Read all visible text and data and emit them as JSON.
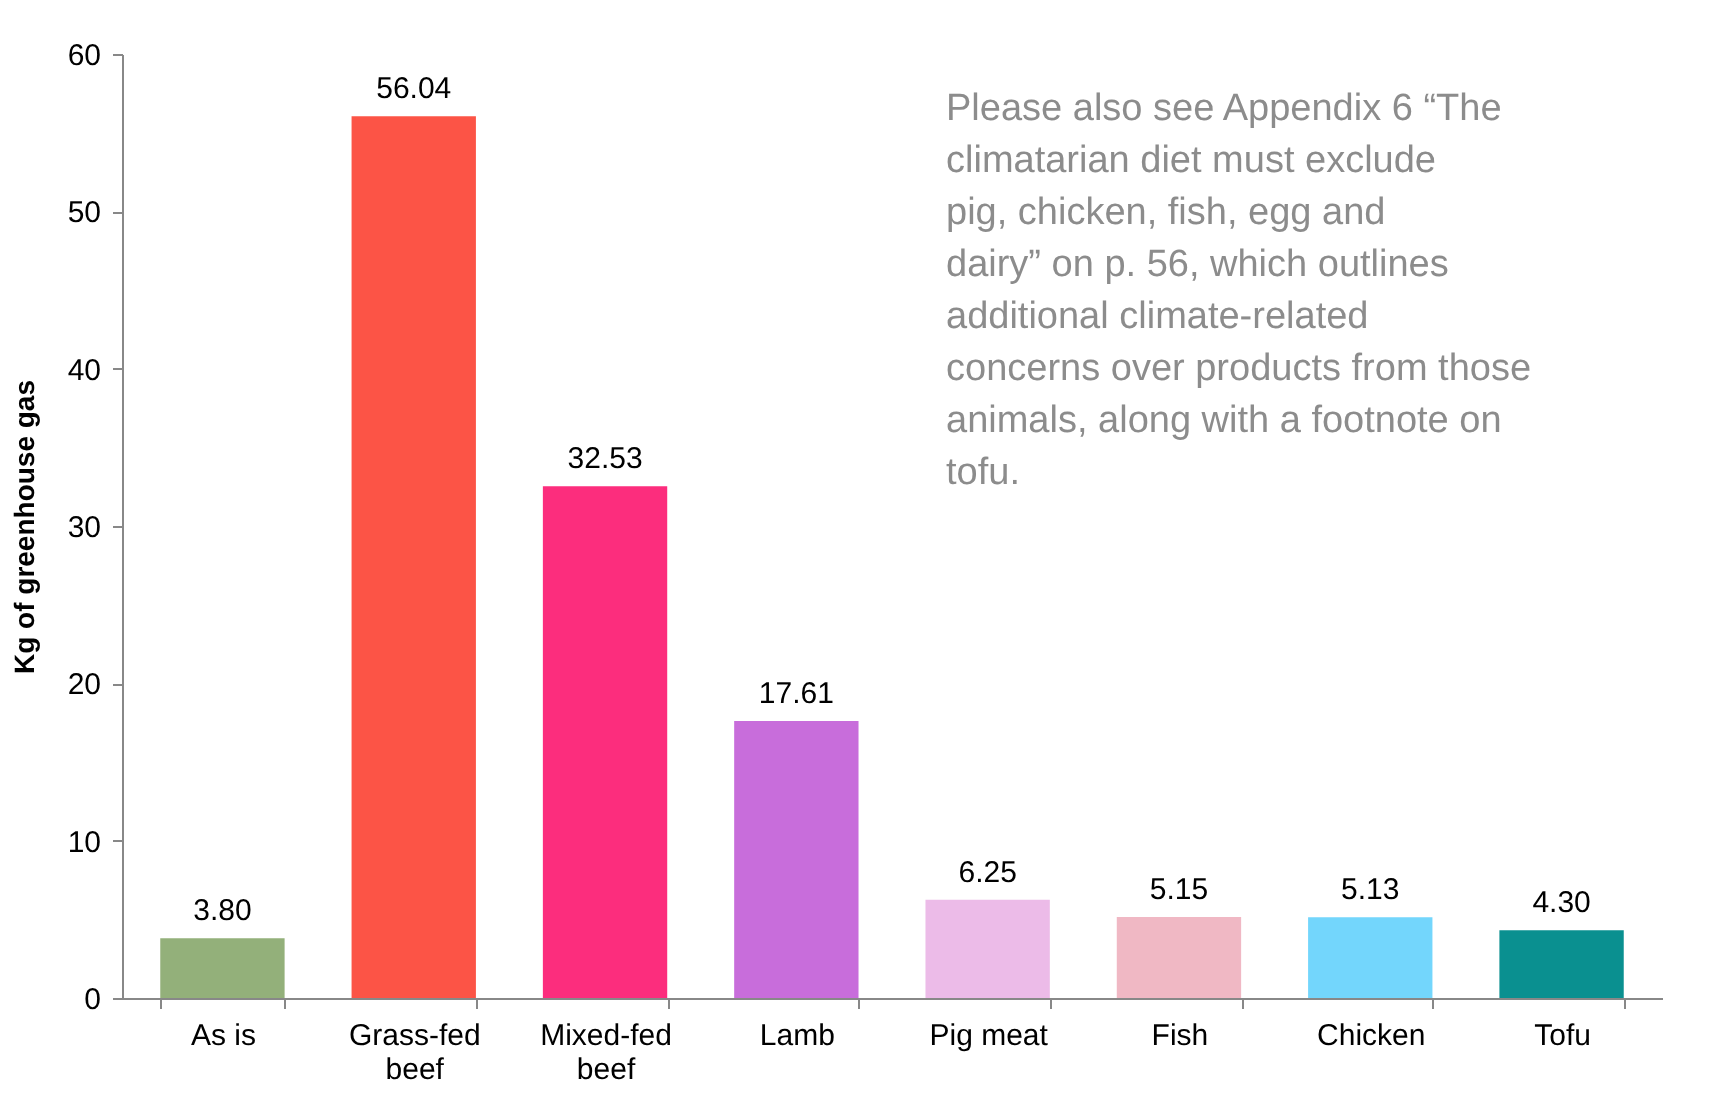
{
  "chart_data": {
    "type": "bar",
    "ylabel": "Kg of greenhouse gas",
    "categories": [
      "As is",
      "Grass-fed beef",
      "Mixed-fed beef",
      "Lamb",
      "Pig meat",
      "Fish",
      "Chicken",
      "Tofu"
    ],
    "values": [
      3.8,
      56.04,
      32.53,
      17.61,
      6.25,
      5.15,
      5.13,
      4.3
    ],
    "colors": [
      "#93b07a",
      "#fc5446",
      "#fc2d7d",
      "#c86ddb",
      "#ecbbe8",
      "#f0b8c4",
      "#73d6fc",
      "#0a9090"
    ],
    "value_labels": [
      "3.80",
      "56.04",
      "32.53",
      "17.61",
      "6.25",
      "5.15",
      "5.13",
      "4.30"
    ],
    "ylim": [
      0,
      60
    ],
    "yticks": [
      0,
      10,
      20,
      30,
      40,
      50,
      60
    ],
    "annotations": [
      "Please also see Appendix 6 “The climatarian diet must exclude pig, chicken, fish, egg and dairy” on p. 56, which outlines additional climate-related concerns over products from those animals, along with a footnote on tofu."
    ]
  }
}
